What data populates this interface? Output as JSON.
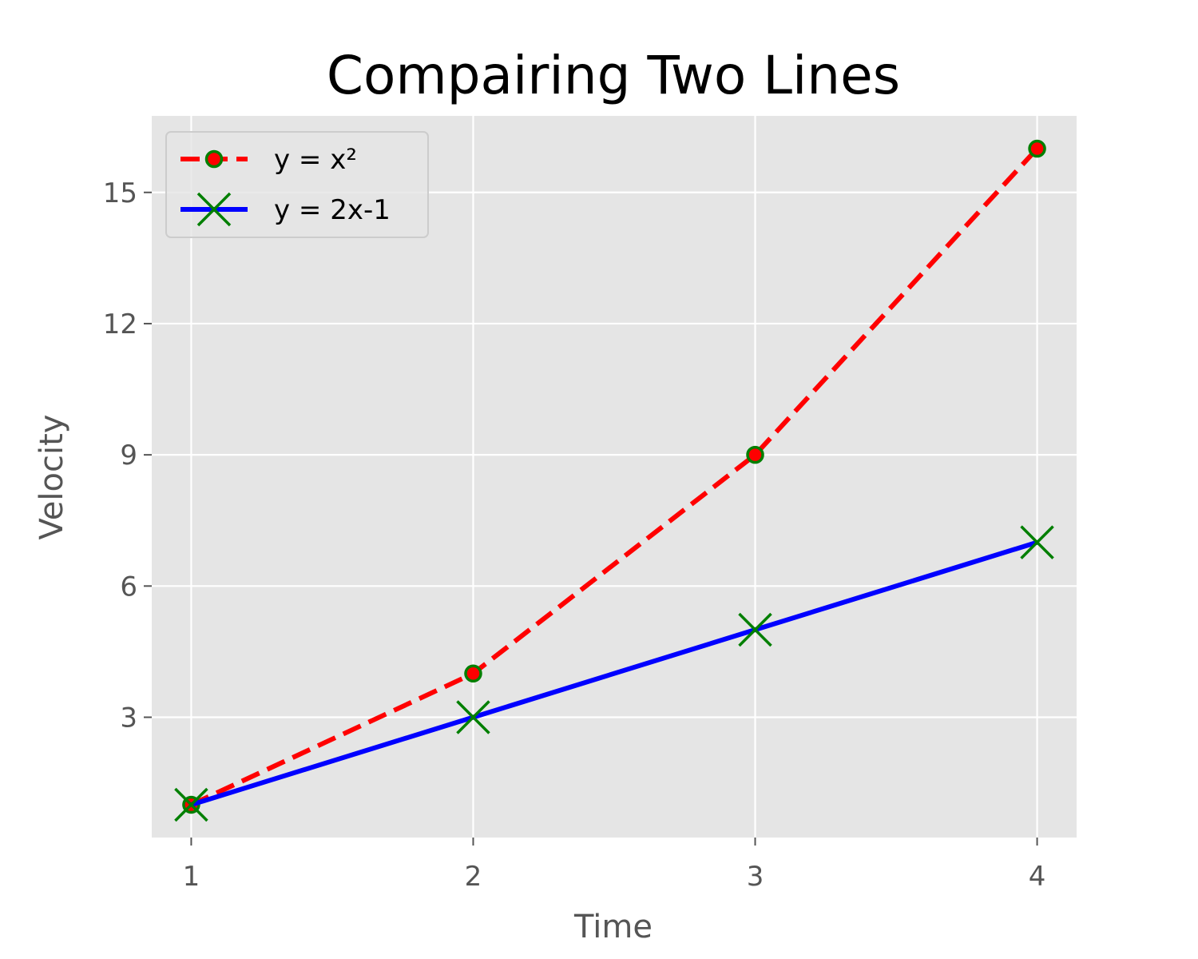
{
  "chart_data": {
    "type": "line",
    "title": "Compairing Two Lines",
    "xlabel": "Time",
    "ylabel": "Velocity",
    "x": [
      1,
      2,
      3,
      4
    ],
    "x_ticks": [
      1,
      2,
      3,
      4
    ],
    "y_ticks": [
      3,
      6,
      9,
      12,
      15
    ],
    "xlim": [
      0.86,
      4.14
    ],
    "ylim": [
      0.25,
      16.75
    ],
    "grid": true,
    "legend_position": "upper-left",
    "background": "#e5e5e5",
    "series": [
      {
        "name": "y = x²",
        "values": [
          1,
          4,
          9,
          16
        ],
        "line_color": "#ff0000",
        "line_style": "dashed",
        "marker": "circle",
        "marker_face": "#ff0000",
        "marker_edge": "#007f00"
      },
      {
        "name": "y = 2x-1",
        "values": [
          1,
          3,
          5,
          7
        ],
        "line_color": "#0000ff",
        "line_style": "solid",
        "marker": "x",
        "marker_face": "#007f00",
        "marker_edge": "#007f00"
      }
    ]
  }
}
